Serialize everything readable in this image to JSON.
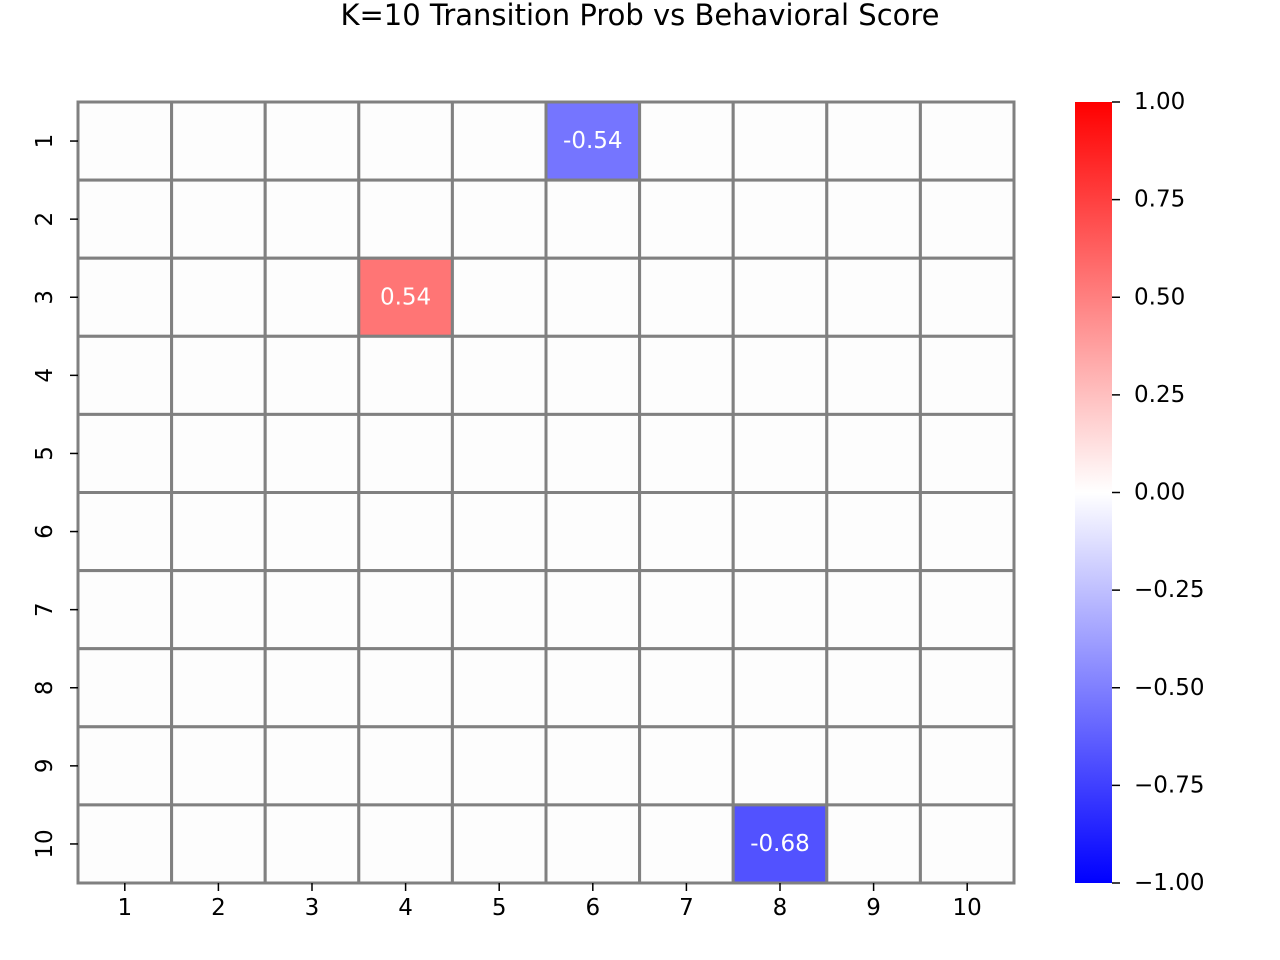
{
  "chart_data": {
    "type": "heatmap",
    "title": "K=10 Transition Prob vs Behavioral Score",
    "xlabel": "",
    "ylabel": "",
    "x_categories": [
      "1",
      "2",
      "3",
      "4",
      "5",
      "6",
      "7",
      "8",
      "9",
      "10"
    ],
    "y_categories": [
      "1",
      "2",
      "3",
      "4",
      "5",
      "6",
      "7",
      "8",
      "9",
      "10"
    ],
    "values": [
      [
        0,
        0,
        0,
        0,
        0,
        -0.54,
        0,
        0,
        0,
        0
      ],
      [
        0,
        0,
        0,
        0,
        0,
        0,
        0,
        0,
        0,
        0
      ],
      [
        0,
        0,
        0,
        0.54,
        0,
        0,
        0,
        0,
        0,
        0
      ],
      [
        0,
        0,
        0,
        0,
        0,
        0,
        0,
        0,
        0,
        0
      ],
      [
        0,
        0,
        0,
        0,
        0,
        0,
        0,
        0,
        0,
        0
      ],
      [
        0,
        0,
        0,
        0,
        0,
        0,
        0,
        0,
        0,
        0
      ],
      [
        0,
        0,
        0,
        0,
        0,
        0,
        0,
        0,
        0,
        0
      ],
      [
        0,
        0,
        0,
        0,
        0,
        0,
        0,
        0,
        0,
        0
      ],
      [
        0,
        0,
        0,
        0,
        0,
        0,
        0,
        0,
        0,
        0
      ],
      [
        0,
        0,
        0,
        0,
        0,
        0,
        0,
        -0.68,
        0,
        0
      ]
    ],
    "annotations": [
      {
        "row": 0,
        "col": 5,
        "text": "-0.54"
      },
      {
        "row": 2,
        "col": 3,
        "text": "0.54"
      },
      {
        "row": 9,
        "col": 7,
        "text": "-0.68"
      }
    ],
    "colormap": "bwr",
    "colorbar": {
      "vmin": -1.0,
      "vmax": 1.0,
      "ticks": [
        1.0,
        0.75,
        0.5,
        0.25,
        0.0,
        -0.25,
        -0.5,
        -0.75,
        -1.0
      ],
      "tick_labels": [
        "1.00",
        "0.75",
        "0.50",
        "0.25",
        "0.00",
        "−0.25",
        "−0.50",
        "−0.75",
        "−1.00"
      ]
    },
    "colors": {
      "positive_end": "#ff0000",
      "zero": "#ffffff",
      "negative_end": "#0000ff",
      "grid_line": "#808080",
      "empty_cell": "#fdfdfd"
    }
  }
}
